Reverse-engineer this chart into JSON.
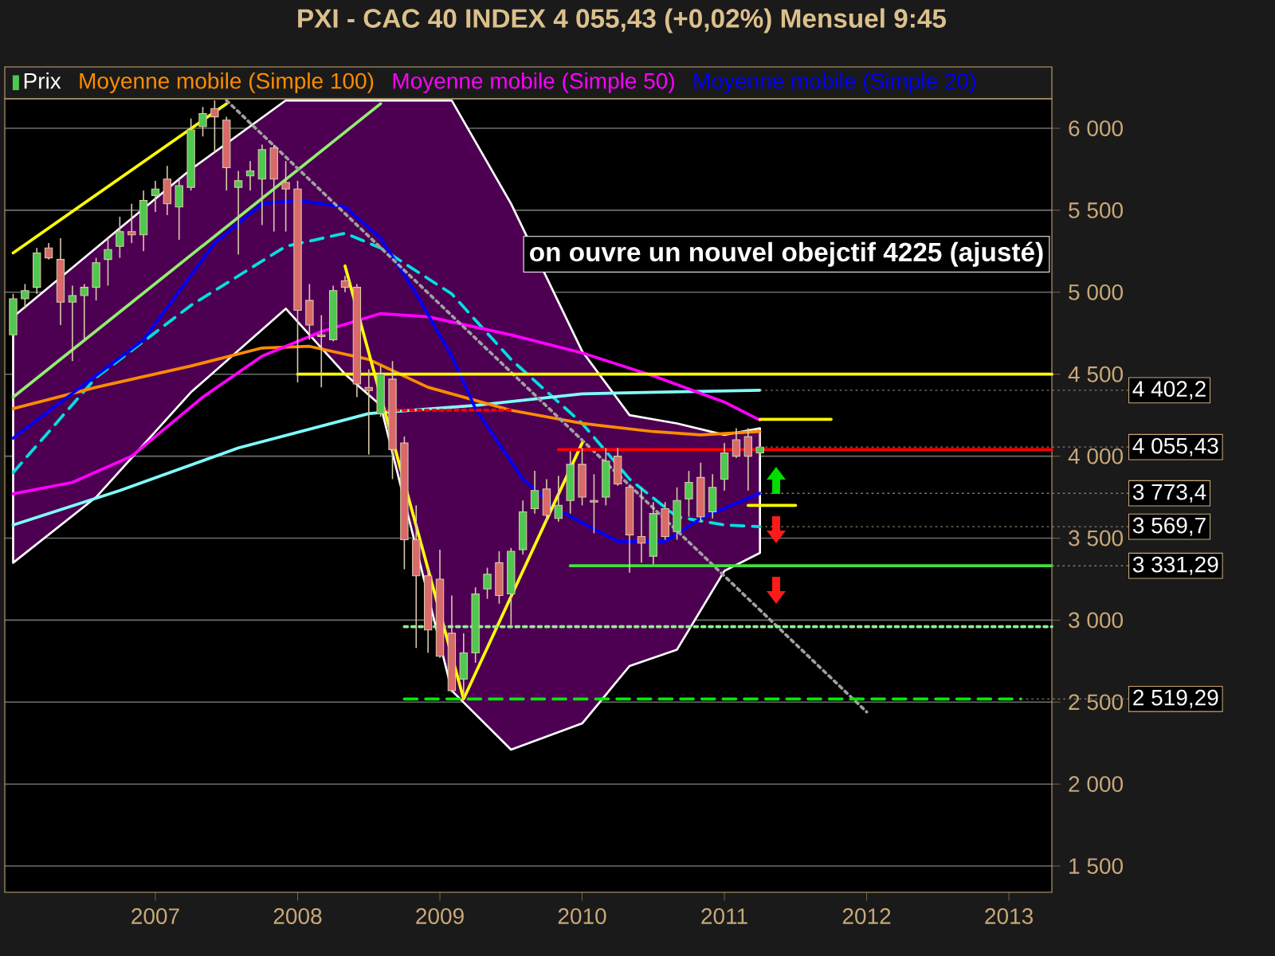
{
  "chart_data": {
    "type": "candlestick",
    "title": "PXI - CAC 40 INDEX    4 055,43 (+0,02%)    Mensuel  9:45",
    "xlim": [
      "2005-12-10",
      "2013-04-20"
    ],
    "xticks": [
      "2007",
      "2008",
      "2009",
      "2010",
      "2011",
      "2012",
      "2013"
    ],
    "ylim": [
      1340,
      6180
    ],
    "yticks": [
      {
        "value": 1500,
        "label": "1 500"
      },
      {
        "value": 2000,
        "label": "2 000"
      },
      {
        "value": 2500,
        "label": "2 500"
      },
      {
        "value": 3000,
        "label": "3 000"
      },
      {
        "value": 3500,
        "label": "3 500"
      },
      {
        "value": 4000,
        "label": "4 000"
      },
      {
        "value": 4500,
        "label": "4 500"
      },
      {
        "value": 5000,
        "label": "5 000"
      },
      {
        "value": 5500,
        "label": "5 500"
      },
      {
        "value": 6000,
        "label": "6 000"
      }
    ],
    "grid": "y",
    "legend": "top",
    "series": [
      {
        "name": "Prix",
        "x": [
          "2006-01",
          "2006-02",
          "2006-03",
          "2006-04",
          "2006-05",
          "2006-06",
          "2006-07",
          "2006-08",
          "2006-09",
          "2006-10",
          "2006-11",
          "2006-12",
          "2007-01",
          "2007-02",
          "2007-03",
          "2007-04",
          "2007-05",
          "2007-06",
          "2007-07",
          "2007-08",
          "2007-09",
          "2007-10",
          "2007-11",
          "2007-12",
          "2008-01",
          "2008-02",
          "2008-03",
          "2008-04",
          "2008-05",
          "2008-06",
          "2008-07",
          "2008-08",
          "2008-09",
          "2008-10",
          "2008-11",
          "2008-12",
          "2009-01",
          "2009-02",
          "2009-03",
          "2009-04",
          "2009-05",
          "2009-06",
          "2009-07",
          "2009-08",
          "2009-09",
          "2009-10",
          "2009-11",
          "2009-12",
          "2010-01",
          "2010-02",
          "2010-03",
          "2010-04",
          "2010-05",
          "2010-06",
          "2010-07",
          "2010-08",
          "2010-09",
          "2010-10",
          "2010-11",
          "2010-12",
          "2011-01",
          "2011-02",
          "2011-03",
          "2011-04"
        ],
        "ohlc": [
          [
            4740,
            4990,
            4730,
            4960
          ],
          [
            4960,
            5050,
            4900,
            5010
          ],
          [
            5030,
            5270,
            4990,
            5240
          ],
          [
            5270,
            5300,
            5200,
            5210
          ],
          [
            5200,
            5330,
            4800,
            4940
          ],
          [
            4940,
            5040,
            4580,
            4980
          ],
          [
            4980,
            5050,
            4710,
            5030
          ],
          [
            5030,
            5210,
            4950,
            5180
          ],
          [
            5200,
            5330,
            5040,
            5260
          ],
          [
            5280,
            5460,
            5210,
            5370
          ],
          [
            5370,
            5540,
            5300,
            5350
          ],
          [
            5350,
            5620,
            5250,
            5560
          ],
          [
            5590,
            5680,
            5490,
            5630
          ],
          [
            5690,
            5770,
            5470,
            5540
          ],
          [
            5520,
            5700,
            5320,
            5650
          ],
          [
            5640,
            6060,
            5620,
            5990
          ],
          [
            6010,
            6130,
            5950,
            6090
          ],
          [
            6120,
            6170,
            5850,
            6070
          ],
          [
            6050,
            6070,
            5620,
            5760
          ],
          [
            5640,
            5740,
            5230,
            5680
          ],
          [
            5710,
            5800,
            5620,
            5740
          ],
          [
            5690,
            5900,
            5410,
            5870
          ],
          [
            5880,
            5900,
            5370,
            5690
          ],
          [
            5670,
            5800,
            5370,
            5630
          ],
          [
            5630,
            5680,
            4450,
            4890
          ],
          [
            4950,
            5050,
            4710,
            4800
          ],
          [
            4740,
            4860,
            4420,
            4730
          ],
          [
            4710,
            5040,
            4700,
            5010
          ],
          [
            5070,
            5100,
            5000,
            5030
          ],
          [
            5030,
            5050,
            4360,
            4440
          ],
          [
            4420,
            4530,
            4010,
            4400
          ],
          [
            4260,
            4550,
            4240,
            4500
          ],
          [
            4470,
            4580,
            3860,
            4040
          ],
          [
            4080,
            4120,
            3310,
            3490
          ],
          [
            3490,
            3700,
            2830,
            3270
          ],
          [
            3270,
            3320,
            2800,
            2940
          ],
          [
            3250,
            3430,
            2770,
            2780
          ],
          [
            2920,
            3150,
            2560,
            2570
          ],
          [
            2640,
            2920,
            2519.29,
            2800
          ],
          [
            2800,
            3200,
            2740,
            3160
          ],
          [
            3190,
            3320,
            3130,
            3280
          ],
          [
            3350,
            3420,
            3100,
            3150
          ],
          [
            3160,
            3440,
            2970,
            3420
          ],
          [
            3430,
            3730,
            3400,
            3660
          ],
          [
            3680,
            3910,
            3650,
            3790
          ],
          [
            3800,
            3860,
            3600,
            3640
          ],
          [
            3620,
            3880,
            3600,
            3700
          ],
          [
            3730,
            4030,
            3650,
            3950
          ],
          [
            3950,
            4050,
            3700,
            3750
          ],
          [
            3730,
            3890,
            3530,
            3720
          ],
          [
            3750,
            4050,
            3700,
            3970
          ],
          [
            4000,
            4050,
            3820,
            3830
          ],
          [
            3810,
            3820,
            3290,
            3520
          ],
          [
            3510,
            3810,
            3350,
            3470
          ],
          [
            3390,
            3720,
            3340,
            3650
          ],
          [
            3680,
            3720,
            3490,
            3510
          ],
          [
            3540,
            3810,
            3490,
            3730
          ],
          [
            3740,
            3910,
            3630,
            3840
          ],
          [
            3870,
            3960,
            3600,
            3630
          ],
          [
            3660,
            3890,
            3620,
            3810
          ],
          [
            3860,
            4080,
            3790,
            4020
          ],
          [
            4100,
            4170,
            3990,
            4000
          ],
          [
            4120,
            4170,
            3790,
            4000
          ],
          [
            4020,
            4140,
            4000,
            4055.43
          ]
        ]
      },
      {
        "type": "line",
        "color": "#00e0e0",
        "line_style": "dashed",
        "x": [
          "2006-01",
          "2006-08",
          "2007-04",
          "2007-12",
          "2008-05",
          "2008-08",
          "2009-02",
          "2009-07",
          "2010-01",
          "2010-05",
          "2010-09",
          "2011-01",
          "2011-04"
        ],
        "values": [
          3900,
          4480,
          4920,
          5280,
          5360,
          5270,
          4990,
          4590,
          4200,
          3860,
          3630,
          3580,
          3569.7
        ],
        "upper": [
          4850,
          5270,
          5750,
          6170,
          6170,
          6170,
          6170,
          5540,
          4640,
          4250,
          4200,
          4130,
          4170
        ],
        "lower": [
          3350,
          3750,
          4390,
          4900,
          4500,
          4310,
          2570,
          2210,
          2370,
          2720,
          2820,
          3300,
          3410
        ]
      },
      {
        "type": "line",
        "color": "#80ffff",
        "x": [
          "2006-01",
          "2006-10",
          "2007-08",
          "2008-07",
          "2009-04",
          "2010-01",
          "2010-07",
          "2011-04"
        ],
        "values": [
          3580,
          3790,
          4050,
          4260,
          4310,
          4380,
          4390,
          4402.2
        ]
      },
      {
        "name": "Moyenne mobile (Simple 100)",
        "type": "line",
        "color": "#ff8c00",
        "x": [
          "2006-01",
          "2006-08",
          "2007-04",
          "2007-10",
          "2008-02",
          "2008-07",
          "2008-12",
          "2009-07",
          "2010-01",
          "2010-07",
          "2010-11",
          "2011-04"
        ],
        "values": [
          4290,
          4420,
          4550,
          4660,
          4670,
          4590,
          4420,
          4280,
          4200,
          4150,
          4130,
          4150
        ]
      },
      {
        "name": "Moyenne mobile (Simple 50)",
        "type": "line",
        "color": "#ff00ff",
        "x": [
          "2006-01",
          "2006-06",
          "2006-11",
          "2007-05",
          "2007-10",
          "2008-03",
          "2008-08",
          "2008-12",
          "2009-07",
          "2010-01",
          "2010-07",
          "2011-01",
          "2011-04"
        ],
        "values": [
          3770,
          3840,
          4000,
          4360,
          4610,
          4760,
          4870,
          4850,
          4740,
          4630,
          4490,
          4330,
          4220
        ]
      },
      {
        "name": "Moyenne mobile (Simple 20)",
        "type": "line",
        "color": "#0000ff",
        "x": [
          "2006-01",
          "2006-12",
          "2007-06",
          "2007-10",
          "2008-01",
          "2008-05",
          "2008-08",
          "2008-11",
          "2009-02",
          "2009-04",
          "2009-08",
          "2009-11",
          "2010-04",
          "2010-08",
          "2010-11",
          "2011-04"
        ],
        "values": [
          4110,
          4710,
          5300,
          5540,
          5560,
          5520,
          5330,
          4990,
          4610,
          4290,
          3860,
          3670,
          3480,
          3480,
          3620,
          3773.4
        ]
      },
      {
        "type": "line",
        "color": "#ffff00",
        "x": [
          "2006-01",
          "2007-07"
        ],
        "values": [
          5240,
          6150
        ]
      },
      {
        "type": "line",
        "color": "#90ee70",
        "x": [
          "2006-01",
          "2008-08"
        ],
        "values": [
          4360,
          6150
        ]
      },
      {
        "type": "line",
        "color": "#a0a0a0",
        "line_style": "dotted",
        "x": [
          "2007-07",
          "2012-01"
        ],
        "values": [
          6170,
          2440
        ]
      },
      {
        "type": "line",
        "color": "#ffff00",
        "x": [
          "2008-05",
          "2009-03",
          "2010-01"
        ],
        "values": [
          5160,
          2519.29,
          4080
        ]
      },
      {
        "type": "line",
        "color": "#ffff00",
        "x": [
          "2008-01",
          "2013-04-20"
        ],
        "values": [
          4500,
          4500
        ]
      },
      {
        "type": "line",
        "color": "#ff0000",
        "x": [
          "2009-11",
          "2013-04-20"
        ],
        "values": [
          4040,
          4040
        ]
      },
      {
        "type": "line",
        "color": "#ff0000",
        "line_style": "dotted",
        "x": [
          "2008-08",
          "2009-07"
        ],
        "values": [
          4280,
          4280
        ]
      },
      {
        "type": "line",
        "color": "#40e040",
        "x": [
          "2009-12",
          "2013-04-20"
        ],
        "values": [
          3331.29,
          3331.29
        ]
      },
      {
        "type": "line",
        "color": "#00ee00",
        "line_style": "dashed",
        "x": [
          "2008-10",
          "2013-02"
        ],
        "values": [
          2519.29,
          2519.29
        ]
      },
      {
        "type": "line",
        "color": "#90ee90",
        "line_style": "dotted",
        "x": [
          "2008-10",
          "2013-04-20"
        ],
        "values": [
          2960,
          2960
        ]
      },
      {
        "type": "line",
        "color": "#ffff00",
        "x": [
          "2011-04",
          "2011-10"
        ],
        "values": [
          4225,
          4225
        ]
      },
      {
        "type": "line",
        "color": "#ffff00",
        "x": [
          "2011-03",
          "2011-07"
        ],
        "values": [
          3700,
          3700
        ]
      }
    ],
    "annotations": [
      "on ouvre un nouvel obejctif 4225 (ajusté)",
      {
        "text": "4 402,2",
        "x": "2011-04",
        "y": 4402.2
      },
      {
        "text": "4 055,43",
        "x": "2011-04",
        "y": 4055.43
      },
      {
        "text": "3 773,4",
        "x": "2011-04",
        "y": 3773.4
      },
      {
        "text": "3 569,7",
        "x": "2011-04",
        "y": 3569.7
      },
      {
        "text": "3 331,29",
        "x": "2013-04-20",
        "y": 3331.29
      },
      {
        "text": "2 519,29",
        "x": "2013-02",
        "y": 2519.29
      }
    ]
  }
}
